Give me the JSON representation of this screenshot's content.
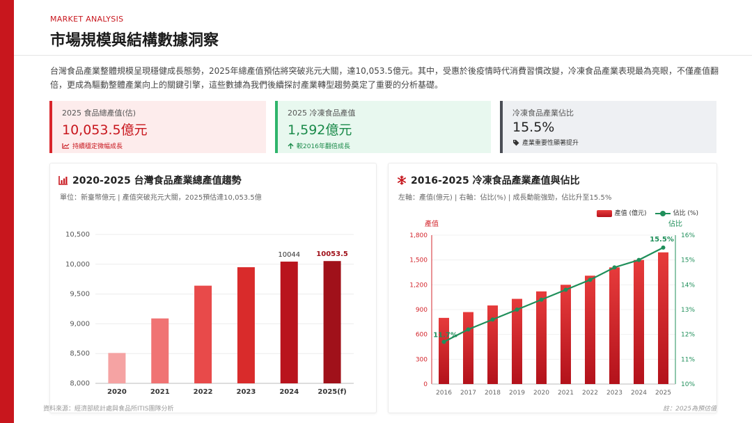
{
  "header": {
    "eyebrow": "MARKET ANALYSIS",
    "title": "市場規模與結構數據洞察",
    "intro": "台灣食品產業整體規模呈現穩健成長態勢，2025年總產值預估將突破兆元大關，達10,053.5億元。其中，受惠於後疫情時代消費習慣改變，冷凍食品產業表現最為亮眼，不僅產值翻倍，更成為驅動整體產業向上的關鍵引擎，這些數據為我們後續探討產業轉型趨勢奠定了重要的分析基礎。"
  },
  "kpis": [
    {
      "label": "2025 食品總產值(估)",
      "value": "10,053.5億元",
      "note": "持續穩定微幅成長",
      "icon": "trend-line-icon"
    },
    {
      "label": "2025 冷凍食品產值",
      "value": "1,592億元",
      "note": "較2016年翻倍成長",
      "icon": "arrow-up-icon"
    },
    {
      "label": "冷凍食品產業佔比",
      "value": "15.5%",
      "note": "產業重要性顯著提升",
      "icon": "tag-icon"
    }
  ],
  "cards": {
    "left": {
      "title": "2020-2025 台灣食品產業總產值趨勢",
      "subtitle": "單位：新臺幣億元 | 產值突破兆元大關，2025預估達10,053.5億",
      "icon": "bar-chart-icon"
    },
    "right": {
      "title": "2016-2025 冷凍食品產業產值與佔比",
      "subtitle": "左軸：產值(億元) | 右軸：佔比(%) | 成長動能強勁，佔比升至15.5%",
      "icon": "snowflake-icon",
      "legend_bar": "產值 (億元)",
      "legend_line": "佔比 (%)",
      "left_axis_name": "產值",
      "right_axis_name": "佔比"
    }
  },
  "footer": {
    "source": "資料來源：經濟部統計處與食品所ITIS團隊分析",
    "note": "註：2025為預估值"
  },
  "colors": {
    "brand_red": "#c8161d",
    "green": "#1f8f5a",
    "dark_red": "#a0111a"
  },
  "chart_data": [
    {
      "type": "bar",
      "title": "2020-2025 台灣食品產業總產值趨勢",
      "categories": [
        "2020",
        "2021",
        "2022",
        "2023",
        "2024",
        "2025(f)"
      ],
      "values": [
        8510,
        9090,
        9640,
        9950,
        10044,
        10053.5
      ],
      "data_labels": [
        "",
        "",
        "",
        "",
        "10044",
        "10053.5"
      ],
      "ylim": [
        8000,
        10500
      ],
      "yticks": [
        8000,
        8500,
        9000,
        9500,
        10000,
        10500
      ],
      "ytick_labels": [
        "8,000",
        "8,500",
        "9,000",
        "9,500",
        "10,000",
        "10,500"
      ],
      "bar_colors": [
        "#f5a3a3",
        "#f07373",
        "#e84a4a",
        "#d92b2b",
        "#b9141d",
        "#a0111a"
      ],
      "grid": true
    },
    {
      "type": "bar",
      "title": "2016-2025 冷凍食品產業產值與佔比",
      "categories": [
        "2016",
        "2017",
        "2018",
        "2019",
        "2020",
        "2021",
        "2022",
        "2023",
        "2024",
        "2025"
      ],
      "series": [
        {
          "name": "產值 (億元)",
          "axis": "left",
          "values": [
            800,
            870,
            950,
            1030,
            1120,
            1200,
            1310,
            1410,
            1500,
            1592
          ]
        },
        {
          "name": "佔比 (%)",
          "axis": "right",
          "type": "line",
          "values": [
            11.7,
            12.2,
            12.6,
            13.0,
            13.4,
            13.8,
            14.2,
            14.7,
            15.0,
            15.5
          ]
        }
      ],
      "ylim": [
        0,
        1800
      ],
      "yticks": [
        0,
        300,
        600,
        900,
        1200,
        1500,
        1800
      ],
      "ytick_labels": [
        "0",
        "300",
        "600",
        "900",
        "1,200",
        "1,500",
        "1,800"
      ],
      "y2lim": [
        10,
        16
      ],
      "y2ticks": [
        10,
        11,
        12,
        13,
        14,
        15,
        16
      ],
      "y2tick_labels": [
        "10%",
        "11%",
        "12%",
        "13%",
        "14%",
        "15%",
        "16%"
      ],
      "line_labels": [
        "11.7%",
        "",
        "",
        "",
        "",
        "",
        "",
        "",
        "",
        "15.5%"
      ],
      "legend": "top-right",
      "grid": true
    }
  ]
}
